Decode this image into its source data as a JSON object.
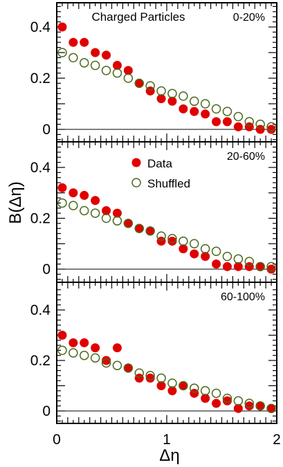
{
  "figure": {
    "ylabel": "B(Δη)",
    "xlabel": "Δη",
    "title": "Charged Particles",
    "legend": {
      "data_label": "Data",
      "shuffled_label": "Shuffled",
      "placement": "middle panel, upper left of center"
    },
    "colors": {
      "data": "#e00000",
      "shuffled": "#4a6a1e",
      "axes": "#000000"
    }
  },
  "chart_data": [
    {
      "type": "scatter",
      "panel": "top",
      "label": "0-20%",
      "xlim": [
        0,
        2
      ],
      "ylim": [
        -0.05,
        0.5
      ],
      "x_ticks": [
        0,
        1,
        2
      ],
      "y_ticks": [
        0,
        0.2,
        0.4
      ],
      "y_tick_labels": [
        "0",
        "0.2",
        "0.4"
      ],
      "series": [
        {
          "name": "Data",
          "marker": "filled-circle",
          "x": [
            0.05,
            0.15,
            0.25,
            0.35,
            0.45,
            0.55,
            0.65,
            0.75,
            0.85,
            0.95,
            1.05,
            1.15,
            1.25,
            1.35,
            1.45,
            1.55,
            1.65,
            1.75,
            1.85,
            1.95
          ],
          "y": [
            0.4,
            0.34,
            0.34,
            0.3,
            0.29,
            0.25,
            0.23,
            0.18,
            0.15,
            0.12,
            0.11,
            0.08,
            0.07,
            0.06,
            0.03,
            0.03,
            0.01,
            0.01,
            0.0,
            0.0
          ]
        },
        {
          "name": "Shuffled",
          "marker": "open-circle",
          "x": [
            0.05,
            0.15,
            0.25,
            0.35,
            0.45,
            0.55,
            0.65,
            0.75,
            0.85,
            0.95,
            1.05,
            1.15,
            1.25,
            1.35,
            1.45,
            1.55,
            1.65,
            1.75,
            1.85,
            1.95
          ],
          "y": [
            0.3,
            0.28,
            0.26,
            0.25,
            0.23,
            0.22,
            0.2,
            0.18,
            0.17,
            0.15,
            0.14,
            0.13,
            0.11,
            0.1,
            0.08,
            0.07,
            0.05,
            0.03,
            0.02,
            0.01
          ]
        }
      ]
    },
    {
      "type": "scatter",
      "panel": "middle",
      "label": "20-60%",
      "xlim": [
        0,
        2
      ],
      "ylim": [
        -0.05,
        0.5
      ],
      "x_ticks": [
        0,
        1,
        2
      ],
      "y_ticks": [
        0,
        0.2,
        0.4
      ],
      "y_tick_labels": [
        "0",
        "0.2",
        "0.4"
      ],
      "series": [
        {
          "name": "Data",
          "marker": "filled-circle",
          "x": [
            0.05,
            0.15,
            0.25,
            0.35,
            0.45,
            0.55,
            0.65,
            0.75,
            0.85,
            0.95,
            1.05,
            1.15,
            1.25,
            1.35,
            1.45,
            1.55,
            1.65,
            1.75,
            1.85,
            1.95
          ],
          "y": [
            0.32,
            0.3,
            0.29,
            0.27,
            0.23,
            0.22,
            0.18,
            0.16,
            0.15,
            0.11,
            0.11,
            0.08,
            0.06,
            0.05,
            0.02,
            0.01,
            0.01,
            0.01,
            0.01,
            0.0
          ]
        },
        {
          "name": "Shuffled",
          "marker": "open-circle",
          "x": [
            0.05,
            0.15,
            0.25,
            0.35,
            0.45,
            0.55,
            0.65,
            0.75,
            0.85,
            0.95,
            1.05,
            1.15,
            1.25,
            1.35,
            1.45,
            1.55,
            1.65,
            1.75,
            1.85,
            1.95
          ],
          "y": [
            0.26,
            0.25,
            0.23,
            0.22,
            0.2,
            0.19,
            0.18,
            0.16,
            0.15,
            0.13,
            0.12,
            0.11,
            0.1,
            0.08,
            0.07,
            0.05,
            0.04,
            0.03,
            0.01,
            0.01
          ]
        }
      ]
    },
    {
      "type": "scatter",
      "panel": "bottom",
      "label": "60-100%",
      "xlim": [
        0,
        2
      ],
      "ylim": [
        -0.05,
        0.5
      ],
      "x_ticks": [
        0,
        1,
        2
      ],
      "x_tick_labels": [
        "0",
        "1",
        "2"
      ],
      "y_ticks": [
        0,
        0.2,
        0.4
      ],
      "y_tick_labels": [
        "0",
        "0.2",
        "0.4"
      ],
      "series": [
        {
          "name": "Data",
          "marker": "filled-circle",
          "x": [
            0.05,
            0.15,
            0.25,
            0.35,
            0.45,
            0.55,
            0.65,
            0.75,
            0.85,
            0.95,
            1.05,
            1.15,
            1.25,
            1.35,
            1.45,
            1.55,
            1.65,
            1.75,
            1.85,
            1.95
          ],
          "y": [
            0.3,
            0.27,
            0.27,
            0.25,
            0.2,
            0.25,
            0.17,
            0.13,
            0.13,
            0.1,
            0.08,
            0.1,
            0.07,
            0.05,
            0.03,
            0.04,
            0.01,
            0.02,
            0.02,
            0.01
          ]
        },
        {
          "name": "Shuffled",
          "marker": "open-circle",
          "x": [
            0.05,
            0.15,
            0.25,
            0.35,
            0.45,
            0.55,
            0.65,
            0.75,
            0.85,
            0.95,
            1.05,
            1.15,
            1.25,
            1.35,
            1.45,
            1.55,
            1.65,
            1.75,
            1.85,
            1.95
          ],
          "y": [
            0.24,
            0.23,
            0.22,
            0.21,
            0.19,
            0.18,
            0.17,
            0.15,
            0.14,
            0.13,
            0.11,
            0.1,
            0.09,
            0.08,
            0.07,
            0.05,
            0.04,
            0.03,
            0.02,
            0.01
          ]
        }
      ]
    }
  ]
}
